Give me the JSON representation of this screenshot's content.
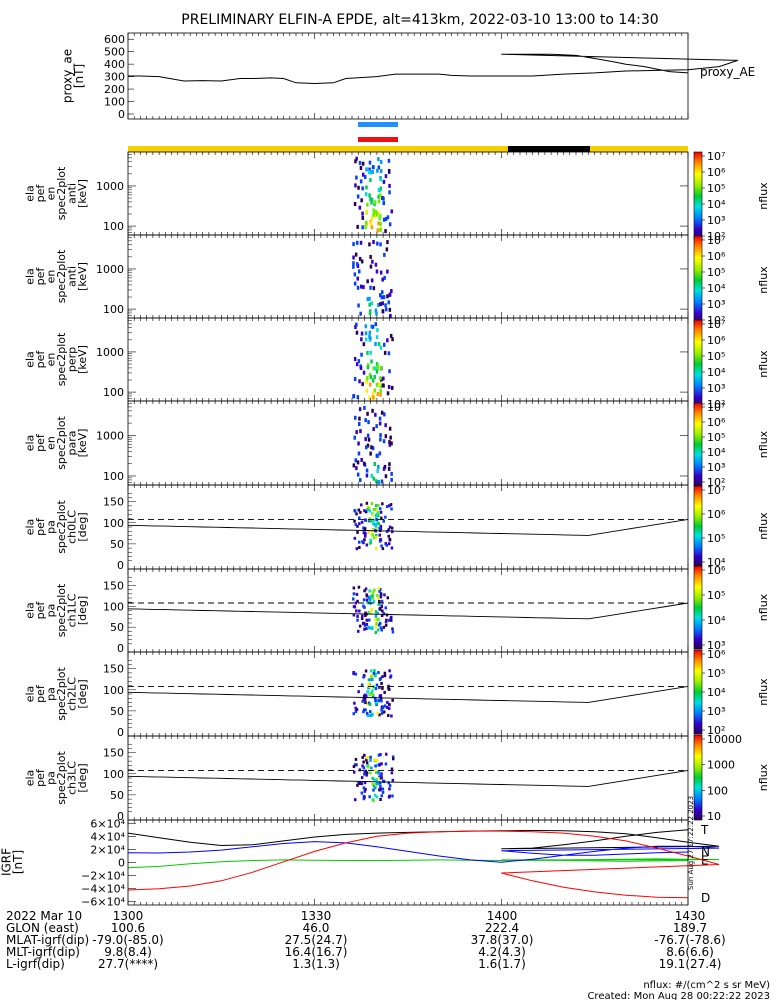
{
  "title": "PRELIMINARY ELFIN-A EPDE, alt=413km, 2022-03-10 13:00 to 14:30",
  "chart_data": [
    {
      "type": "line",
      "ylabel": [
        "proxy_ae",
        "[nT]"
      ],
      "legend": "proxy_AE",
      "yticks": [
        "0",
        "100",
        "200",
        "300",
        "400",
        "500",
        "600"
      ],
      "ylim": [
        0,
        650
      ],
      "series": [
        {
          "name": "proxy_AE",
          "color": "#000000",
          "x": [
            1300,
            1302,
            1305,
            1309,
            1312,
            1315,
            1318,
            1320,
            1323,
            1325,
            1327,
            1330,
            1333,
            1335,
            1340,
            1343,
            1348,
            1350,
            1352,
            1355,
            1360,
            1365,
            1370,
            1375,
            1380,
            1385,
            1390,
            1395,
            1398,
            1400,
            1402,
            1405,
            1408,
            1412,
            1415,
            1418,
            1420,
            1423,
            1425,
            1427,
            1430
          ],
          "y": [
            305,
            305,
            300,
            265,
            268,
            265,
            285,
            285,
            290,
            285,
            250,
            245,
            250,
            285,
            300,
            320,
            320,
            320,
            310,
            305,
            305,
            305,
            320,
            330,
            345,
            350,
            355,
            380,
            430,
            480,
            480,
            480,
            480,
            470,
            445,
            420,
            400,
            380,
            360,
            340,
            330
          ]
        }
      ]
    },
    {
      "type": "heatmap",
      "ylabel": [
        "ela",
        "pef",
        "en",
        "spec2plot",
        "anti",
        "[keV]"
      ],
      "yticks": [
        "100",
        "1000"
      ],
      "yscale": "log",
      "ylim": [
        60,
        7000
      ],
      "colorbar_label": "nflux",
      "colorbar_ticks": [
        "10²",
        "10³",
        "10⁴",
        "10⁵",
        "10⁶",
        "10⁷"
      ]
    },
    {
      "type": "heatmap",
      "ylabel": [
        "ela",
        "pef",
        "en",
        "spec2plot",
        "anti",
        "[keV]"
      ],
      "yticks": [
        "100",
        "1000"
      ],
      "yscale": "log",
      "ylim": [
        60,
        7000
      ],
      "colorbar_label": "nflux",
      "colorbar_ticks": [
        "10²",
        "10³",
        "10⁴",
        "10⁵",
        "10⁶",
        "10⁷"
      ]
    },
    {
      "type": "heatmap",
      "ylabel": [
        "ela",
        "pef",
        "en",
        "spec2plot",
        "perp",
        "[keV]"
      ],
      "yticks": [
        "100",
        "1000"
      ],
      "yscale": "log",
      "ylim": [
        60,
        7000
      ],
      "colorbar_label": "nflux",
      "colorbar_ticks": [
        "10²",
        "10³",
        "10⁴",
        "10⁵",
        "10⁶",
        "10⁷"
      ]
    },
    {
      "type": "heatmap",
      "ylabel": [
        "ela",
        "pef",
        "en",
        "spec2plot",
        "para",
        "[keV]"
      ],
      "yticks": [
        "100",
        "1000"
      ],
      "yscale": "log",
      "ylim": [
        60,
        7000
      ],
      "colorbar_label": "nflux",
      "colorbar_ticks": [
        "10²",
        "10³",
        "10⁴",
        "10⁵",
        "10⁶",
        "10⁷"
      ]
    },
    {
      "type": "heatmap",
      "ylabel": [
        "ela",
        "pef",
        "pa",
        "spec2plot",
        "ch0LC",
        "[deg]"
      ],
      "yticks": [
        "0",
        "50",
        "100",
        "150"
      ],
      "ylim": [
        0,
        180
      ],
      "colorbar_label": "nflux",
      "colorbar_ticks": [
        "10⁴",
        "10⁵",
        "10⁶",
        "10⁷"
      ]
    },
    {
      "type": "heatmap",
      "ylabel": [
        "ela",
        "pef",
        "pa",
        "spec2plot",
        "ch1LC",
        "[deg]"
      ],
      "yticks": [
        "0",
        "50",
        "100",
        "150"
      ],
      "ylim": [
        0,
        180
      ],
      "colorbar_label": "nflux",
      "colorbar_ticks": [
        "10³",
        "10⁴",
        "10⁵",
        "10⁶"
      ]
    },
    {
      "type": "heatmap",
      "ylabel": [
        "ela",
        "pef",
        "pa",
        "spec2plot",
        "ch2LC",
        "[deg]"
      ],
      "yticks": [
        "0",
        "50",
        "100",
        "150"
      ],
      "ylim": [
        0,
        180
      ],
      "colorbar_label": "nflux",
      "colorbar_ticks": [
        "10²",
        "10³",
        "10⁴",
        "10⁵",
        "10⁶"
      ]
    },
    {
      "type": "heatmap",
      "ylabel": [
        "ela",
        "pef",
        "pa",
        "spec2plot",
        "ch3LC",
        "[deg]"
      ],
      "yticks": [
        "0",
        "50",
        "100",
        "150"
      ],
      "ylim": [
        0,
        180
      ],
      "colorbar_label": "nflux",
      "colorbar_ticks": [
        "10",
        "100",
        "1000",
        "10000"
      ]
    },
    {
      "type": "line",
      "ylabel": [
        "IGRF",
        "[nT]"
      ],
      "yticks": [
        "−6×10⁴",
        "−4×10⁴",
        "−2×10⁴",
        "0",
        "2×10⁴",
        "4×10⁴",
        "6×10⁴"
      ],
      "ylim": [
        -65000,
        65000
      ],
      "series": [
        {
          "name": "T",
          "color": "#000000",
          "x": [
            1300,
            1305,
            1310,
            1315,
            1320,
            1325,
            1330,
            1335,
            1340,
            1345,
            1350,
            1355,
            1360,
            1365,
            1370,
            1375,
            1380,
            1385,
            1390,
            1395,
            1400,
            1405,
            1410,
            1415,
            1420,
            1425,
            1430
          ],
          "y": [
            45000,
            38000,
            31000,
            26000,
            27000,
            33000,
            39000,
            43000,
            45000,
            46000,
            47000,
            48000,
            48500,
            49000,
            48500,
            47000,
            44000,
            38000,
            31000,
            25000,
            21000,
            22000,
            27000,
            33000,
            40000,
            46000,
            50000
          ]
        },
        {
          "name": "E",
          "color": "#00cc00",
          "x": [
            1300,
            1305,
            1310,
            1315,
            1320,
            1325,
            1330,
            1335,
            1340,
            1345,
            1350,
            1355,
            1360,
            1365,
            1370,
            1375,
            1380,
            1385,
            1390,
            1395,
            1400,
            1405,
            1410,
            1415,
            1420,
            1425,
            1430
          ],
          "y": [
            -8000,
            -6000,
            -2000,
            1000,
            3000,
            4000,
            3500,
            3000,
            3000,
            3500,
            4000,
            3500,
            3000,
            3500,
            4000,
            4500,
            5000,
            5500,
            5000,
            4500,
            4000,
            3500,
            3000,
            2500,
            2000,
            2500,
            3000
          ]
        },
        {
          "name": "N",
          "color": "#0000ff",
          "x": [
            1300,
            1305,
            1310,
            1315,
            1320,
            1325,
            1330,
            1335,
            1340,
            1345,
            1350,
            1355,
            1360,
            1365,
            1370,
            1375,
            1380,
            1385,
            1390,
            1395,
            1400,
            1405,
            1410,
            1415,
            1420,
            1425,
            1430
          ],
          "y": [
            15000,
            14500,
            16000,
            19000,
            24000,
            29000,
            32000,
            30000,
            24000,
            17000,
            10000,
            4000,
            500,
            5000,
            11000,
            17000,
            22000,
            25000,
            25000,
            22000,
            18000,
            14000,
            11000,
            11000,
            13000,
            15000,
            16000
          ]
        },
        {
          "name": "D",
          "color": "#ff0000",
          "x": [
            1300,
            1305,
            1310,
            1315,
            1320,
            1325,
            1330,
            1335,
            1340,
            1345,
            1350,
            1355,
            1360,
            1365,
            1370,
            1375,
            1380,
            1385,
            1390,
            1395,
            1400,
            1405,
            1410,
            1415,
            1420,
            1425,
            1430
          ],
          "y": [
            -42000,
            -40000,
            -36000,
            -28000,
            -15000,
            1000,
            17000,
            30000,
            40000,
            45000,
            47000,
            48000,
            48000,
            47000,
            45000,
            40000,
            33000,
            22000,
            10000,
            -3000,
            -16000,
            -28000,
            -38000,
            -45000,
            -50000,
            -53000,
            -54000
          ]
        }
      ]
    }
  ],
  "xaxis": {
    "rows": [
      {
        "label": "2022 Mar 10",
        "values": [
          "1300",
          "1330",
          "1400",
          "1430"
        ]
      },
      {
        "label": "GLON (east)",
        "values": [
          "100.6",
          "46.0",
          "222.4",
          "189.7"
        ]
      },
      {
        "label": "MLAT-igrf(dip)",
        "values": [
          "-79.0(-85.0)",
          "27.5(24.7)",
          "37.8(37.0)",
          "-76.7(-78.6)"
        ]
      },
      {
        "label": "MLT-igrf(dip)",
        "values": [
          "9.8(8.4)",
          "16.4(16.7)",
          "4.2(4.3)",
          "8.6(6.6)"
        ]
      },
      {
        "label": "L-igrf(dip)",
        "values": [
          "27.7(****)",
          "1.3(1.3)",
          "1.6(1.7)",
          "19.1(27.4)"
        ]
      }
    ]
  },
  "side_label": "Sun Aug 27 17:22:22 2023",
  "footer": {
    "units": "nflux: #/(cm^2 s sr MeV)",
    "created": "Created: Mon Aug 28 00:22:22 2023"
  }
}
